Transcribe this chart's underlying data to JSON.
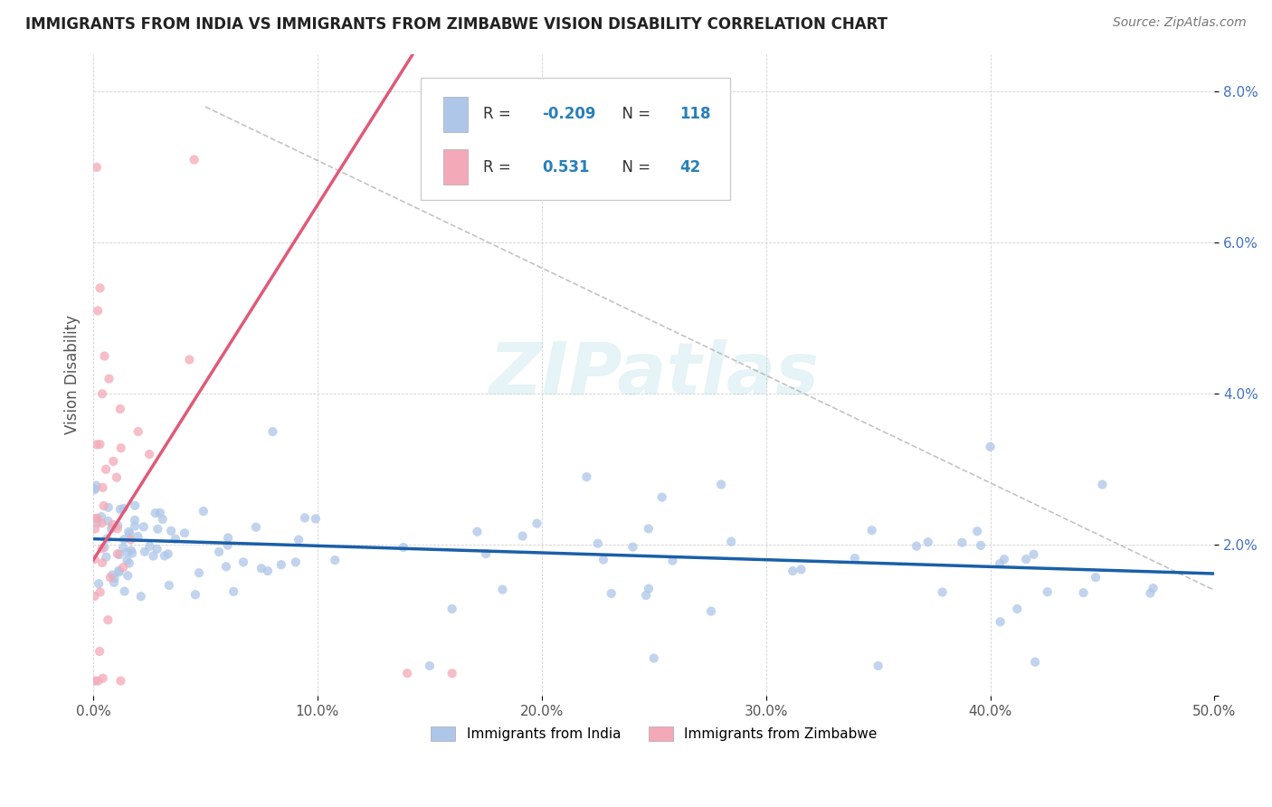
{
  "title": "IMMIGRANTS FROM INDIA VS IMMIGRANTS FROM ZIMBABWE VISION DISABILITY CORRELATION CHART",
  "source": "Source: ZipAtlas.com",
  "ylabel": "Vision Disability",
  "xlim": [
    0,
    50
  ],
  "ylim": [
    0,
    8.5
  ],
  "india_color": "#aec6e8",
  "zimbabwe_color": "#f4a9b8",
  "india_line_color": "#1a5fa8",
  "zimbabwe_line_color": "#e05a78",
  "india_R": -0.209,
  "india_N": 118,
  "zimbabwe_R": 0.531,
  "zimbabwe_N": 42,
  "background_color": "#ffffff",
  "india_line_x0": 0,
  "india_line_y0": 2.08,
  "india_line_x1": 50,
  "india_line_y1": 1.62,
  "zim_line_x0": 0,
  "zim_line_y0": 1.8,
  "zim_line_x1": 10,
  "zim_line_y1": 6.5,
  "ref_line_x0": 5,
  "ref_line_y0": 7.8,
  "ref_line_x1": 50,
  "ref_line_y1": 1.4
}
